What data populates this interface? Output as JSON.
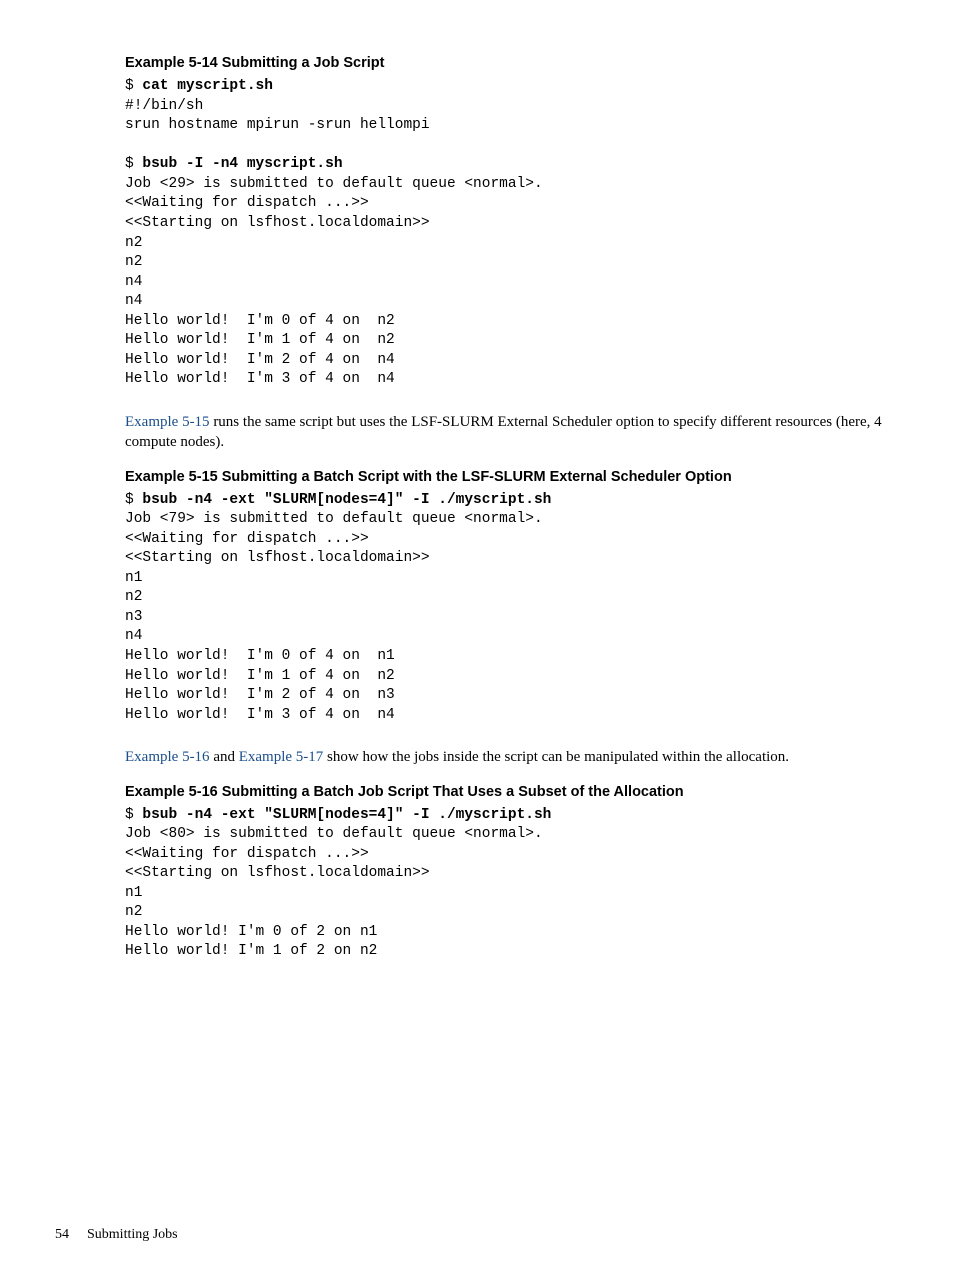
{
  "page": {
    "number": "54",
    "section": "Submitting Jobs"
  },
  "ex14": {
    "heading": "Example  5-14  Submitting a Job Script",
    "cmd1_prefix": "$ ",
    "cmd1": "cat myscript.sh",
    "out1_l1": "#!/bin/sh",
    "out1_l2": "srun hostname mpirun -srun hellompi",
    "cmd2_prefix": "$ ",
    "cmd2": "bsub -I -n4 myscript.sh",
    "out2_l1": "Job <29> is submitted to default queue <normal>.",
    "out2_l2": "<<Waiting for dispatch ...>>",
    "out2_l3": "<<Starting on lsfhost.localdomain>>",
    "out2_l4": "n2",
    "out2_l5": "n2",
    "out2_l6": "n4",
    "out2_l7": "n4",
    "out2_l8": "Hello world!  I'm 0 of 4 on  n2",
    "out2_l9": "Hello world!  I'm 1 of 4 on  n2",
    "out2_l10": "Hello world!  I'm 2 of 4 on  n4",
    "out2_l11": "Hello world!  I'm 3 of 4 on  n4"
  },
  "para1": {
    "link": "Example 5-15",
    "tail": " runs the same script but uses the LSF-SLURM External Scheduler option to specify different resources (here, 4 compute nodes)."
  },
  "ex15": {
    "heading": "Example  5-15  Submitting a Batch Script with the LSF-SLURM External Scheduler Option",
    "cmd_prefix": "$ ",
    "cmd": "bsub -n4 -ext \"SLURM[nodes=4]\" -I ./myscript.sh",
    "l1": "Job <79> is submitted to default queue <normal>.",
    "l2": "<<Waiting for dispatch ...>>",
    "l3": "<<Starting on lsfhost.localdomain>>",
    "l4": "n1",
    "l5": "n2",
    "l6": "n3",
    "l7": "n4",
    "l8": "Hello world!  I'm 0 of 4 on  n1",
    "l9": "Hello world!  I'm 1 of 4 on  n2",
    "l10": "Hello world!  I'm 2 of 4 on  n3",
    "l11": "Hello world!  I'm 3 of 4 on  n4"
  },
  "para2": {
    "link1": "Example 5-16",
    "mid": " and ",
    "link2": "Example 5-17",
    "tail": " show how the jobs inside the script can be manipulated within the allocation."
  },
  "ex16": {
    "heading": "Example  5-16  Submitting a Batch Job Script That Uses a Subset of the Allocation",
    "cmd_prefix": "$ ",
    "cmd": "bsub -n4 -ext \"SLURM[nodes=4]\" -I ./myscript.sh",
    "l1": "Job <80> is submitted to default queue <normal>.",
    "l2": "<<Waiting for dispatch ...>>",
    "l3": "<<Starting on lsfhost.localdomain>>",
    "l4": "n1",
    "l5": "n2",
    "l6": "Hello world! I'm 0 of 2 on n1",
    "l7": "Hello world! I'm 1 of 2 on n2"
  }
}
